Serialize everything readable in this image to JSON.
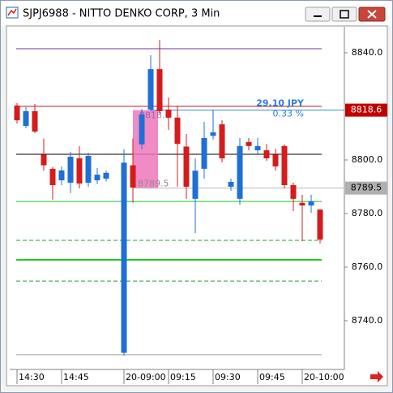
{
  "window": {
    "title": "SJPJ6988 - NITTO DENKO CORP, 3 Min"
  },
  "chart_data": {
    "type": "candlestick",
    "categories": [
      "14:30",
      null,
      null,
      null,
      null,
      "14:45",
      null,
      null,
      null,
      null,
      null,
      null,
      "20-09:00",
      null,
      null,
      null,
      null,
      "09:15",
      null,
      null,
      null,
      null,
      "09:30",
      null,
      null,
      null,
      null,
      "09:45",
      null,
      null,
      null,
      null,
      "20-10:00",
      null,
      null
    ],
    "open": [
      8820.3,
      8812.7,
      8818.2,
      8802,
      8796.7,
      8792.4,
      8791.5,
      8800.6,
      8791.5,
      8792.4,
      8793,
      null,
      8728,
      8798,
      8805.8,
      8818.8,
      8833.9,
      8818.8,
      8815.8,
      8805,
      8785.5,
      8796.7,
      8809,
      8813.3,
      8790,
      8785.5,
      8806.7,
      8803.6,
      8803.6,
      8802,
      8805.2,
      8790.6,
      8784,
      8783,
      8781.5
    ],
    "high": [
      8821.2,
      8819.7,
      8820.9,
      8808,
      8797.3,
      8797.6,
      8803,
      8805.2,
      8802.7,
      8797,
      8796,
      null,
      8804,
      8808,
      8819,
      8839.1,
      8844.8,
      8823.3,
      8820.3,
      8809.7,
      8800.6,
      8814.2,
      8818.8,
      8814.8,
      8793,
      8808.2,
      8808.2,
      8808.2,
      8806,
      8804.2,
      8805.8,
      8791.5,
      8787,
      8787,
      8781.5
    ],
    "low": [
      8813.6,
      8811.8,
      8810,
      8796,
      8785.2,
      8790.6,
      8787.6,
      8789.4,
      8790,
      8791,
      8792,
      null,
      8727,
      8784,
      8804,
      8818.2,
      8817.3,
      8811.2,
      8790,
      8785.5,
      8772.7,
      8793,
      8807.6,
      8799.1,
      8788.5,
      8783.3,
      8803.6,
      8802.1,
      8799.7,
      8796,
      8789.4,
      8780.9,
      8769.7,
      8780.3,
      8768.8
    ],
    "close": [
      8814.8,
      8818.2,
      8810.6,
      8798,
      8790.6,
      8796.1,
      8801.2,
      8791.2,
      8801.5,
      8794.5,
      8795.2,
      null,
      8799,
      8789.7,
      8817,
      8833.9,
      8818.2,
      8815.8,
      8806,
      8790,
      8796,
      8808.2,
      8810.3,
      8800.6,
      8791.8,
      8805.2,
      8805.2,
      8805.2,
      8800.6,
      8797.6,
      8790.6,
      8785.5,
      8783,
      8784.5,
      8770.3
    ],
    "up_color": "#1f6fd6",
    "down_color": "#d41c1c",
    "ylim": [
      8721.8,
      8849.7
    ],
    "yticks": [
      {
        "value": 8740,
        "label": "8740.0"
      },
      {
        "value": 8760,
        "label": "8760.0"
      },
      {
        "value": 8780,
        "label": "8780.0"
      },
      {
        "value": 8800,
        "label": "8800.0"
      },
      {
        "value": 8840,
        "label": "8840.0"
      }
    ],
    "levels": [
      {
        "value": 8841.5,
        "color": "#7030a0",
        "dashed": false,
        "width": 1
      },
      {
        "value": 8820,
        "color": "#b02020",
        "dashed": false,
        "width": 1
      },
      {
        "value": 8802.1,
        "color": "#000000",
        "dashed": false,
        "width": 1
      },
      {
        "value": 8784.5,
        "color": "#22c022",
        "dashed": false,
        "width": 1
      },
      {
        "value": 8770,
        "color": "#22a022",
        "dashed": true,
        "width": 1
      },
      {
        "value": 8762.7,
        "color": "#22cc22",
        "dashed": false,
        "width": 2
      },
      {
        "value": 8754.8,
        "color": "#22a022",
        "dashed": true,
        "width": 1
      },
      {
        "value": 8727.3,
        "color": "#a0a0a0",
        "dashed": false,
        "width": 1
      }
    ],
    "price_tags": [
      {
        "value": 8818.6,
        "label": "8818.6",
        "color": "#c00000"
      },
      {
        "value": 8789.5,
        "label": "8789.5",
        "color": "#b0b0b0"
      }
    ],
    "measurement": {
      "from": {
        "value": 8789.5,
        "label": "8789.5"
      },
      "to": {
        "value": 8818.6,
        "label": "8818.6"
      },
      "change": "29.10 JPY",
      "percent": "0.33 %",
      "color": "#ee77bb"
    }
  }
}
